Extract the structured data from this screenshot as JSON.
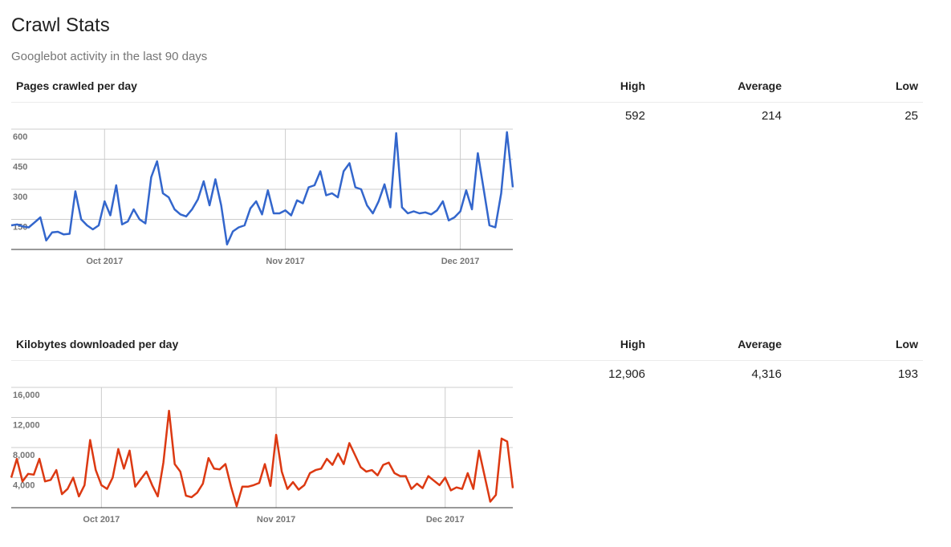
{
  "page": {
    "title": "Crawl Stats",
    "subtitle": "Googlebot activity in the last 90 days"
  },
  "sections": [
    {
      "title": "Pages crawled per day",
      "stats": {
        "high_label": "High",
        "high": "592",
        "avg_label": "Average",
        "avg": "214",
        "low_label": "Low",
        "low": "25"
      }
    },
    {
      "title": "Kilobytes downloaded per day",
      "stats": {
        "high_label": "High",
        "high": "12,906",
        "avg_label": "Average",
        "avg": "4,316",
        "low_label": "Low",
        "low": "193"
      }
    }
  ],
  "chart_data": [
    {
      "type": "line",
      "color": "#3366cc",
      "ylim": [
        0,
        600
      ],
      "y_ticks": [
        150,
        300,
        450,
        600
      ],
      "y_tick_labels": [
        "150",
        "300",
        "450",
        "600"
      ],
      "x_tick_labels": [
        {
          "label": "Oct 2017",
          "index": 16
        },
        {
          "label": "Nov 2017",
          "index": 47
        },
        {
          "label": "Dec 2017",
          "index": 77
        }
      ],
      "values": [
        120,
        125,
        115,
        110,
        135,
        160,
        45,
        85,
        88,
        75,
        78,
        290,
        150,
        120,
        100,
        120,
        240,
        170,
        320,
        125,
        140,
        200,
        150,
        130,
        360,
        440,
        280,
        260,
        200,
        175,
        165,
        200,
        250,
        340,
        220,
        350,
        220,
        25,
        90,
        110,
        120,
        205,
        240,
        175,
        295,
        180,
        180,
        195,
        170,
        245,
        230,
        310,
        320,
        390,
        270,
        280,
        260,
        390,
        430,
        310,
        300,
        220,
        180,
        240,
        325,
        210,
        580,
        210,
        180,
        190,
        180,
        185,
        175,
        195,
        240,
        145,
        160,
        190,
        295,
        200,
        480,
        300,
        120,
        110,
        280,
        585,
        310
      ]
    },
    {
      "type": "line",
      "color": "#dc3912",
      "ylim": [
        0,
        16000
      ],
      "y_ticks": [
        4000,
        8000,
        12000,
        16000
      ],
      "y_tick_labels": [
        "4,000",
        "8,000",
        "12,000",
        "16,000"
      ],
      "x_tick_labels": [
        {
          "label": "Oct 2017",
          "index": 16
        },
        {
          "label": "Nov 2017",
          "index": 47
        },
        {
          "label": "Dec 2017",
          "index": 77
        }
      ],
      "values": [
        4000,
        6500,
        3500,
        4500,
        4400,
        6500,
        3500,
        3700,
        5000,
        1800,
        2500,
        4000,
        1500,
        3000,
        9000,
        5000,
        3000,
        2500,
        4000,
        7800,
        5200,
        7600,
        2800,
        3800,
        4800,
        3000,
        1500,
        6000,
        12900,
        5800,
        4800,
        1600,
        1400,
        2000,
        3200,
        6600,
        5200,
        5100,
        5800,
        2800,
        200,
        2800,
        2800,
        3000,
        3300,
        5800,
        2900,
        9700,
        4800,
        2500,
        3400,
        2400,
        3000,
        4600,
        5000,
        5200,
        6500,
        5700,
        7200,
        5800,
        8600,
        7000,
        5400,
        4800,
        5000,
        4300,
        5700,
        6000,
        4600,
        4200,
        4200,
        2500,
        3200,
        2600,
        4200,
        3600,
        3000,
        4000,
        2300,
        2700,
        2500,
        4600,
        2500,
        7600,
        4200,
        800,
        1700,
        9200,
        8800,
        2600
      ]
    }
  ]
}
